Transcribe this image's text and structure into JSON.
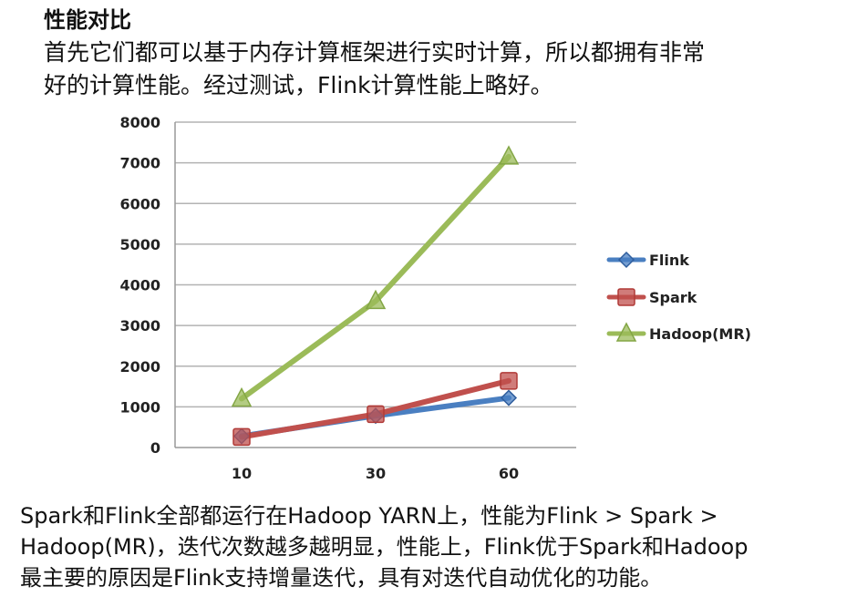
{
  "heading": "性能对比",
  "intro": {
    "line1": "首先它们都可以基于内存计算框架进行实时计算，所以都拥有非常",
    "line2": "好的计算性能。经过测试，Flink计算性能上略好。"
  },
  "chart_data": {
    "type": "line",
    "title": "",
    "xlabel": "",
    "ylabel": "",
    "categories": [
      "10",
      "30",
      "60"
    ],
    "ylim": [
      0,
      8000
    ],
    "yticks": [
      "0",
      "1000",
      "2000",
      "3000",
      "4000",
      "5000",
      "6000",
      "7000",
      "8000"
    ],
    "grid": true,
    "legend_position": "right",
    "series": [
      {
        "name": "Flink",
        "values": [
          280,
          780,
          1220
        ],
        "color": "#4a7fc1",
        "marker": "diamond"
      },
      {
        "name": "Spark",
        "values": [
          260,
          820,
          1640
        ],
        "color": "#c0504d",
        "marker": "square"
      },
      {
        "name": "Hadoop(MR)",
        "values": [
          1200,
          3600,
          7150
        ],
        "color": "#9bbb59",
        "marker": "triangle"
      }
    ]
  },
  "conclusion": {
    "line1": "Spark和Flink全部都运行在Hadoop YARN上，性能为Flink > Spark >",
    "line2": "Hadoop(MR)，迭代次数越多越明显，性能上，Flink优于Spark和Hadoop",
    "line3": "最主要的原因是Flink支持增量迭代，具有对迭代自动优化的功能。"
  }
}
